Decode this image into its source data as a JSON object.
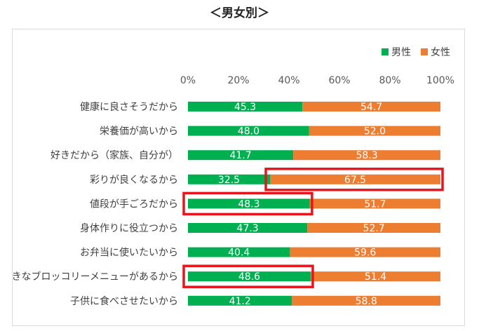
{
  "page_title": "＜男女別＞",
  "colors": {
    "male": "#00b050",
    "female": "#ed7d31",
    "highlight": "#e8141c"
  },
  "chart_data": {
    "type": "bar",
    "orientation": "horizontal-stacked-100",
    "title": "＜男女別＞",
    "xlim": [
      0,
      100
    ],
    "ticks": [
      "0%",
      "20%",
      "40%",
      "60%",
      "80%",
      "100%"
    ],
    "legend": {
      "position": "top-right"
    },
    "series": [
      {
        "name": "男性",
        "color": "#00b050",
        "values": [
          45.3,
          48.0,
          41.7,
          32.5,
          48.3,
          47.3,
          40.4,
          48.6,
          41.2
        ]
      },
      {
        "name": "女性",
        "color": "#ed7d31",
        "values": [
          54.7,
          52.0,
          58.3,
          67.5,
          51.7,
          52.7,
          59.6,
          51.4,
          58.8
        ]
      }
    ],
    "categories": [
      "健康に良さそうだから",
      "栄養価が高いから",
      "好きだから（家族、自分が）",
      "彩りが良くなるから",
      "値段が手ごろだから",
      "身体作りに役立つから",
      "お弁当に使いたいから",
      "好きなブロッコリーメニューがあるから",
      "子供に食べさせたいから"
    ],
    "labels": [
      [
        "45.3",
        "54.7"
      ],
      [
        "48.0",
        "52.0"
      ],
      [
        "41.7",
        "58.3"
      ],
      [
        "32.5",
        "67.5"
      ],
      [
        "48.3",
        "51.7"
      ],
      [
        "47.3",
        "52.7"
      ],
      [
        "40.4",
        "59.6"
      ],
      [
        "48.6",
        "51.4"
      ],
      [
        "41.2",
        "58.8"
      ]
    ],
    "highlights": [
      {
        "category_index": 3,
        "series_index": 1
      },
      {
        "category_index": 4,
        "series_index": 0
      },
      {
        "category_index": 7,
        "series_index": 0
      }
    ]
  }
}
